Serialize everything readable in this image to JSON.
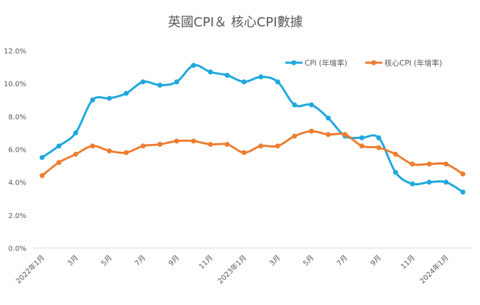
{
  "chart_data": {
    "type": "line",
    "title": "英國CPI＆ 核心CPI數據",
    "xlabel": "",
    "ylabel": "",
    "ylim": [
      0,
      12
    ],
    "yticks": [
      "0.0%",
      "2.0%",
      "4.0%",
      "6.0%",
      "8.0%",
      "10.0%",
      "12.0%"
    ],
    "grid": false,
    "legend": "top-right",
    "smooth": true,
    "x": [
      "2022-01",
      "2022-02",
      "2022-03",
      "2022-04",
      "2022-05",
      "2022-06",
      "2022-07",
      "2022-08",
      "2022-09",
      "2022-10",
      "2022-11",
      "2022-12",
      "2023-01",
      "2023-02",
      "2023-03",
      "2023-04",
      "2023-05",
      "2023-06",
      "2023-07",
      "2023-08",
      "2023-09",
      "2023-10",
      "2023-11",
      "2023-12",
      "2024-01",
      "2024-02"
    ],
    "xtick_labels": [
      "2022年1月",
      "3月",
      "5月",
      "7月",
      "9月",
      "11月",
      "2023年1月",
      "3月",
      "5月",
      "7月",
      "9月",
      "11月",
      "2024年1月"
    ],
    "series": [
      {
        "name": "CPI (年增率)",
        "color": "#1fa8dc",
        "values": [
          5.5,
          6.2,
          7.0,
          9.0,
          9.1,
          9.4,
          10.1,
          9.9,
          10.1,
          11.1,
          10.7,
          10.5,
          10.1,
          10.4,
          10.1,
          8.7,
          8.7,
          7.9,
          6.8,
          6.7,
          6.7,
          4.6,
          3.9,
          4.0,
          4.0,
          3.4
        ]
      },
      {
        "name": "核心CPI (年增率)",
        "color": "#ed7d31",
        "values": [
          4.4,
          5.2,
          5.7,
          6.2,
          5.9,
          5.8,
          6.2,
          6.3,
          6.5,
          6.5,
          6.3,
          6.3,
          5.8,
          6.2,
          6.2,
          6.8,
          7.1,
          6.9,
          6.9,
          6.2,
          6.1,
          5.7,
          5.1,
          5.1,
          5.1,
          4.5
        ]
      }
    ]
  }
}
